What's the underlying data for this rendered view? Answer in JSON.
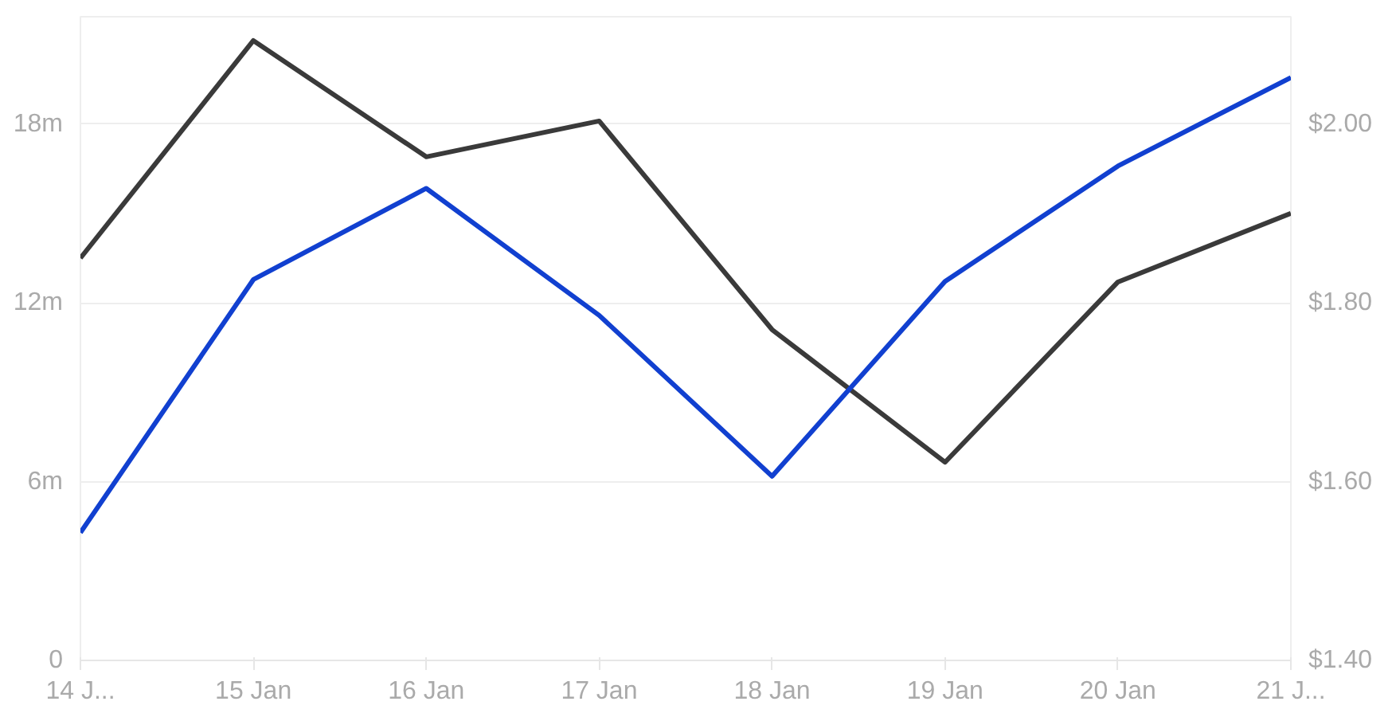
{
  "chart_data": {
    "type": "line",
    "categories": [
      "14 J...",
      "15 Jan",
      "16 Jan",
      "17 Jan",
      "18 Jan",
      "19 Jan",
      "20 Jan",
      "21 J..."
    ],
    "series": [
      {
        "color": "#3a3a3a",
        "values": [
          13.5,
          20.8,
          16.9,
          18.1,
          11.1,
          6.65,
          12.7,
          15.0
        ]
      },
      {
        "color": "#1140d0",
        "axis": "y2",
        "values": [
          1.543,
          1.826,
          1.928,
          1.786,
          1.606,
          1.824,
          1.953,
          2.052
        ]
      }
    ],
    "ylim": [
      0,
      21.6
    ],
    "yticks": [
      {
        "value": 0,
        "label": "0"
      },
      {
        "value": 6,
        "label": "6m"
      },
      {
        "value": 12,
        "label": "12m"
      },
      {
        "value": 18,
        "label": "18m"
      }
    ],
    "y2lim": [
      1.4,
      2.12
    ],
    "y2ticks": [
      {
        "value": 1.4,
        "label": "$1.40"
      },
      {
        "value": 1.6,
        "label": "$1.60"
      },
      {
        "value": 1.8,
        "label": "$1.80"
      },
      {
        "value": 2.0,
        "label": "$2.00"
      }
    ],
    "grid": "y",
    "marker": "none",
    "line_style": "solid"
  }
}
